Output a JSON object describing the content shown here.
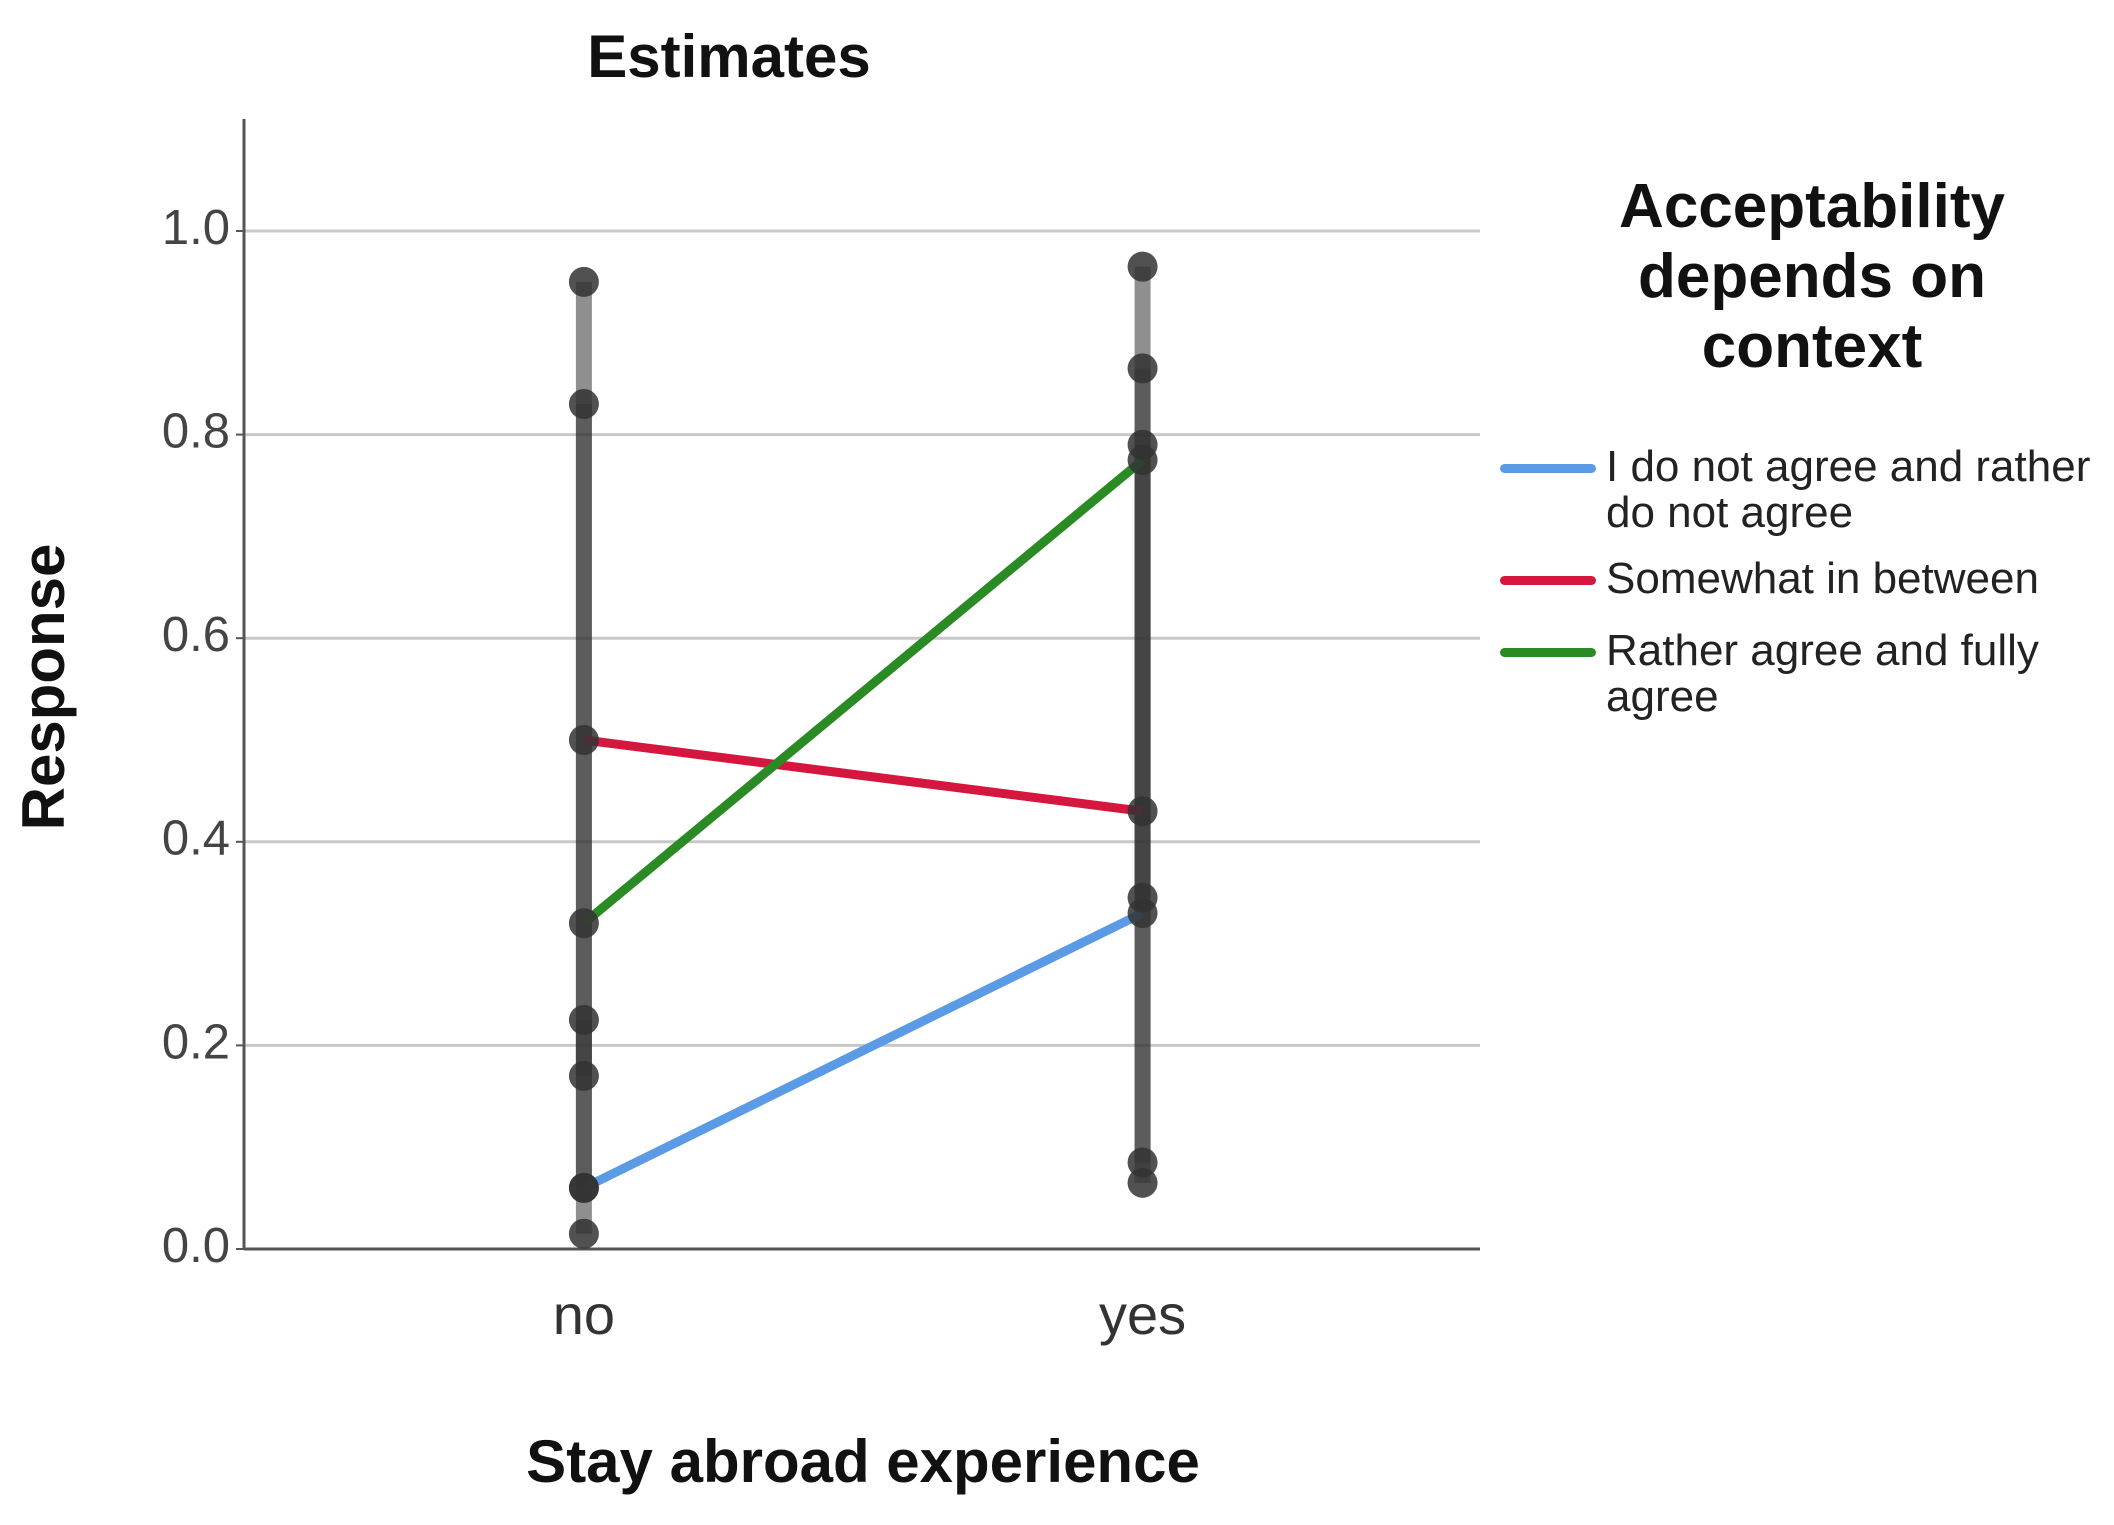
{
  "chart_data": {
    "type": "line",
    "title": "Estimates",
    "x_label": "Stay abroad experience",
    "y_label": "Response",
    "legend_title": "Acceptability depends on context",
    "categories": [
      "no",
      "yes"
    ],
    "series": [
      {
        "name": "I do not agree and rather do not agree",
        "color": "#5b9be6",
        "values": [
          0.06,
          0.33
        ],
        "lower": [
          0.015,
          0.085
        ],
        "upper": [
          0.225,
          0.79
        ]
      },
      {
        "name": "Somewhat in between",
        "color": "#d5173f",
        "values": [
          0.5,
          0.43
        ],
        "lower": [
          0.17,
          0.065
        ],
        "upper": [
          0.83,
          0.865
        ]
      },
      {
        "name": "Rather agree and fully agree",
        "color": "#2a8a24",
        "values": [
          0.32,
          0.775
        ],
        "lower": [
          0.06,
          0.345
        ],
        "upper": [
          0.95,
          0.965
        ]
      }
    ],
    "ylim": [
      0,
      1.11
    ],
    "yticks": [
      {
        "value": 0,
        "label": "0.0"
      },
      {
        "value": 0.2,
        "label": "0.2"
      },
      {
        "value": 0.4,
        "label": "0.4"
      },
      {
        "value": 0.6,
        "label": "0.6"
      },
      {
        "value": 0.8,
        "label": "0.8"
      },
      {
        "value": 1,
        "label": "1.0"
      }
    ],
    "grid": true,
    "legend": "right",
    "error_bar_color": "#333333"
  }
}
